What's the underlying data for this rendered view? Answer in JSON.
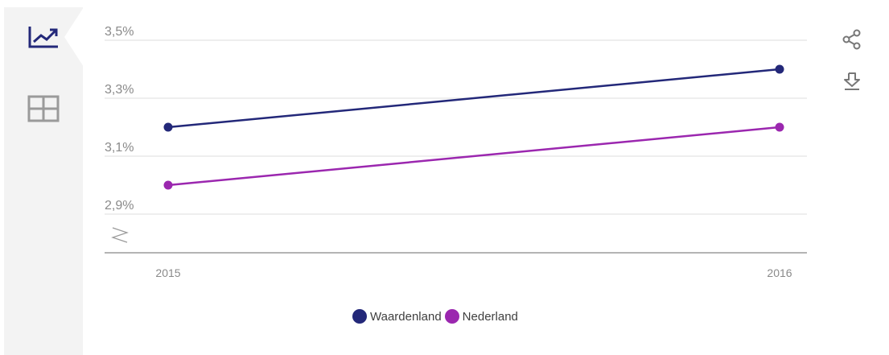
{
  "tabs": {
    "chart_icon": "line-chart-icon",
    "table_icon": "table-icon"
  },
  "actions": {
    "share_icon": "share-icon",
    "download_icon": "download-icon"
  },
  "colors": {
    "waardenland": "#232879",
    "nederland": "#9b27af",
    "axis": "#888888",
    "grid": "#dddddd",
    "tick_text": "#8a8a8a",
    "icon": "#232879",
    "icon_muted": "#9a9a9a"
  },
  "chart_data": {
    "type": "line",
    "categories": [
      "2015",
      "2016"
    ],
    "series": [
      {
        "name": "Waardenland",
        "values": [
          3.2,
          3.4
        ],
        "color": "#232879"
      },
      {
        "name": "Nederland",
        "values": [
          3.0,
          3.2
        ],
        "color": "#9b27af"
      }
    ],
    "y_ticks": [
      {
        "value": 2.9,
        "label": "2,9%"
      },
      {
        "value": 3.1,
        "label": "3,1%"
      },
      {
        "value": 3.3,
        "label": "3,3%"
      },
      {
        "value": 3.5,
        "label": "3,5%"
      }
    ],
    "ylim": [
      2.9,
      3.5
    ],
    "axis_break": true,
    "grid": true,
    "legend_position": "bottom-center",
    "title": "",
    "xlabel": "",
    "ylabel": ""
  }
}
